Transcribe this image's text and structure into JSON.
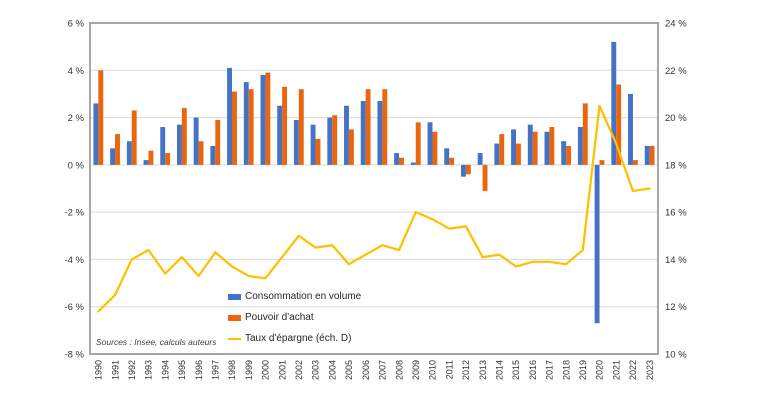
{
  "chart_data": {
    "type": "combo-bar-line",
    "title": "",
    "categories": [
      1990,
      1991,
      1992,
      1993,
      1994,
      1995,
      1996,
      1997,
      1998,
      1999,
      2000,
      2001,
      2002,
      2003,
      2004,
      2005,
      2006,
      2007,
      2008,
      2009,
      2010,
      2011,
      2012,
      2013,
      2014,
      2015,
      2016,
      2017,
      2018,
      2019,
      2020,
      2021,
      2022,
      2023
    ],
    "series": [
      {
        "name": "Consommation en volume",
        "type": "bar",
        "axis": "left",
        "color": "#4472C4",
        "values": [
          2.6,
          0.7,
          1.0,
          0.2,
          1.6,
          1.7,
          2.0,
          0.8,
          4.1,
          3.5,
          3.8,
          2.5,
          1.9,
          1.7,
          2.0,
          2.5,
          2.7,
          2.7,
          0.5,
          0.1,
          1.8,
          0.7,
          -0.5,
          0.5,
          0.9,
          1.5,
          1.7,
          1.4,
          1.0,
          1.6,
          -6.7,
          5.2,
          3.0,
          0.8
        ]
      },
      {
        "name": "Pouvoir d'achat",
        "type": "bar",
        "axis": "left",
        "color": "#EA650D",
        "values": [
          4.0,
          1.3,
          2.3,
          0.6,
          0.5,
          2.4,
          1.0,
          1.9,
          3.1,
          3.2,
          3.9,
          3.3,
          3.2,
          1.1,
          2.1,
          1.5,
          3.2,
          3.2,
          0.3,
          1.8,
          1.4,
          0.3,
          -0.4,
          -1.1,
          1.3,
          0.9,
          1.4,
          1.6,
          0.8,
          2.6,
          0.2,
          3.4,
          0.2,
          0.8
        ]
      },
      {
        "name": "Taux d'épargne (éch. D)",
        "type": "line",
        "axis": "right",
        "color": "#FFC000",
        "values": [
          11.8,
          12.5,
          14.0,
          14.4,
          13.4,
          14.1,
          13.3,
          14.3,
          13.7,
          13.3,
          13.2,
          14.1,
          15.0,
          14.5,
          14.6,
          13.8,
          14.2,
          14.6,
          14.4,
          16.0,
          15.7,
          15.3,
          15.4,
          14.1,
          14.2,
          13.7,
          13.9,
          13.9,
          13.8,
          14.4,
          20.5,
          18.9,
          16.9,
          17.0
        ]
      }
    ],
    "left_axis": {
      "min": -8,
      "max": 6,
      "step": 2,
      "tick_labels": [
        "6 %",
        "4 %",
        "2 %",
        "0 %",
        "-2 %",
        "-4 %",
        "-6 %",
        "-8 %"
      ]
    },
    "right_axis": {
      "min": 10,
      "max": 24,
      "step": 2,
      "tick_labels": [
        "24 %",
        "22 %",
        "20 %",
        "18 %",
        "16 %",
        "14 %",
        "12 %",
        "10 %"
      ]
    },
    "grid": true,
    "legend_position": "inside-bottom-center",
    "source_note": "Sources : Insee, calculs auteurs",
    "plot_border_color": "#A6A6A6",
    "gridline_color": "#D9D9D9",
    "tick_label_color": "#333333"
  }
}
